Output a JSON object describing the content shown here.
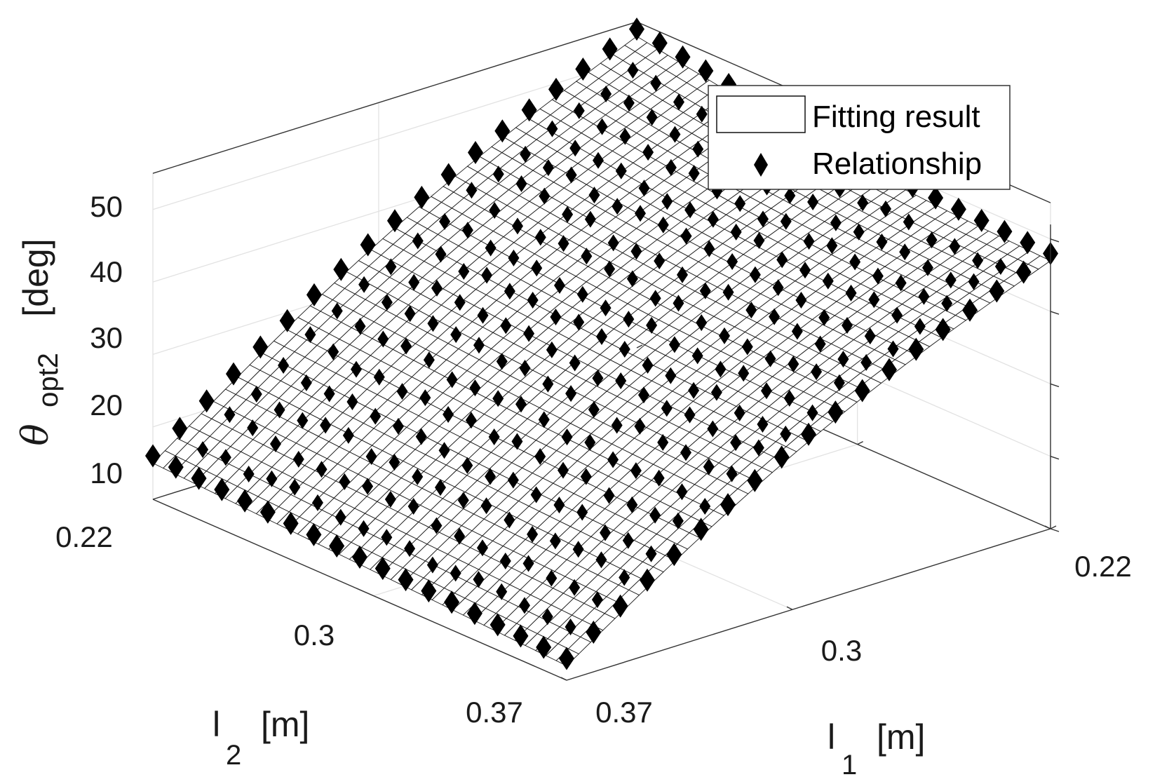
{
  "chart_data": {
    "type": "surface3d",
    "title": "",
    "zlabel": {
      "symbol": "θ",
      "subscript": "opt2",
      "unit": "[deg]"
    },
    "x_axis": {
      "label": "l",
      "subscript": "1",
      "unit": "[m]",
      "range": [
        0.22,
        0.37
      ],
      "ticks": [
        "0.22",
        "0.3",
        "0.37"
      ]
    },
    "y_axis": {
      "label": "l",
      "subscript": "2",
      "unit": "[m]",
      "range": [
        0.22,
        0.37
      ],
      "ticks": [
        "0.22",
        "0.3",
        "0.37"
      ]
    },
    "z_axis": {
      "range": [
        10,
        55
      ],
      "ticks": [
        "10",
        "20",
        "30",
        "40",
        "50"
      ]
    },
    "grid": true,
    "legend": {
      "placement": "top-right",
      "entries": [
        "Fitting result",
        "Relationship"
      ]
    },
    "series": [
      {
        "name": "Fitting result",
        "kind": "mesh-surface",
        "corner_values": {
          "l1_0.22_l2_0.22": 53,
          "l1_0.22_l2_0.37": 47,
          "l1_0.37_l2_0.22": 15,
          "l1_0.37_l2_0.37": 12
        }
      },
      {
        "name": "Relationship",
        "kind": "scatter-diamond",
        "corner_values": {
          "l1_0.22_l2_0.22": 52,
          "l1_0.22_l2_0.37": 48,
          "l1_0.37_l2_0.22": 16,
          "l1_0.37_l2_0.37": 11
        }
      }
    ]
  }
}
